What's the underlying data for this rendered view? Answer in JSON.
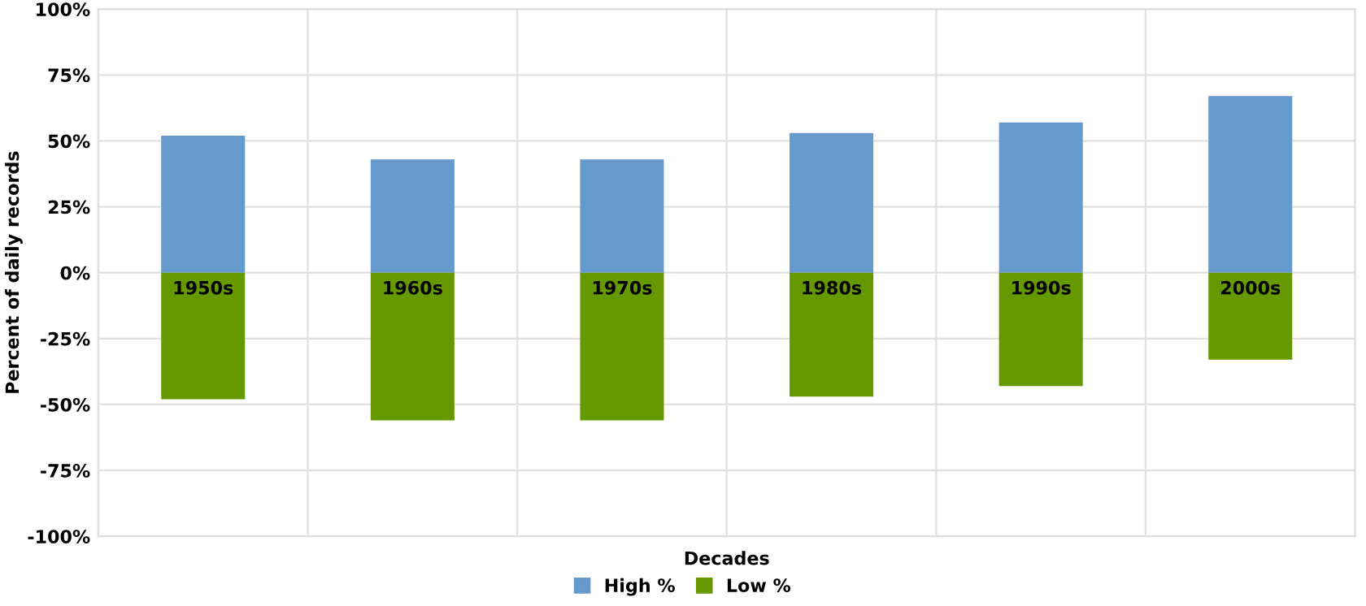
{
  "chart_data": {
    "type": "bar",
    "stacked": true,
    "xlabel": "Decades",
    "ylabel": "Percent of daily records",
    "categories": [
      "1950s",
      "1960s",
      "1970s",
      "1980s",
      "1990s",
      "2000s"
    ],
    "series": [
      {
        "name": "High %",
        "color": "#6699cc",
        "values": [
          52,
          43,
          43,
          53,
          57,
          67
        ]
      },
      {
        "name": "Low %",
        "color": "#669900",
        "values": [
          -48,
          -56,
          -56,
          -47,
          -43,
          -33
        ]
      }
    ],
    "ylim": [
      -100,
      100
    ],
    "yticks": [
      {
        "value": -100,
        "label": "-100%"
      },
      {
        "value": -75,
        "label": "-75%"
      },
      {
        "value": -50,
        "label": "-50%"
      },
      {
        "value": -25,
        "label": "-25%"
      },
      {
        "value": 0,
        "label": "0%"
      },
      {
        "value": 25,
        "label": "25%"
      },
      {
        "value": 50,
        "label": "50%"
      },
      {
        "value": 75,
        "label": "75%"
      },
      {
        "value": 100,
        "label": "100%"
      }
    ],
    "grid": true,
    "legend": "bottom"
  }
}
